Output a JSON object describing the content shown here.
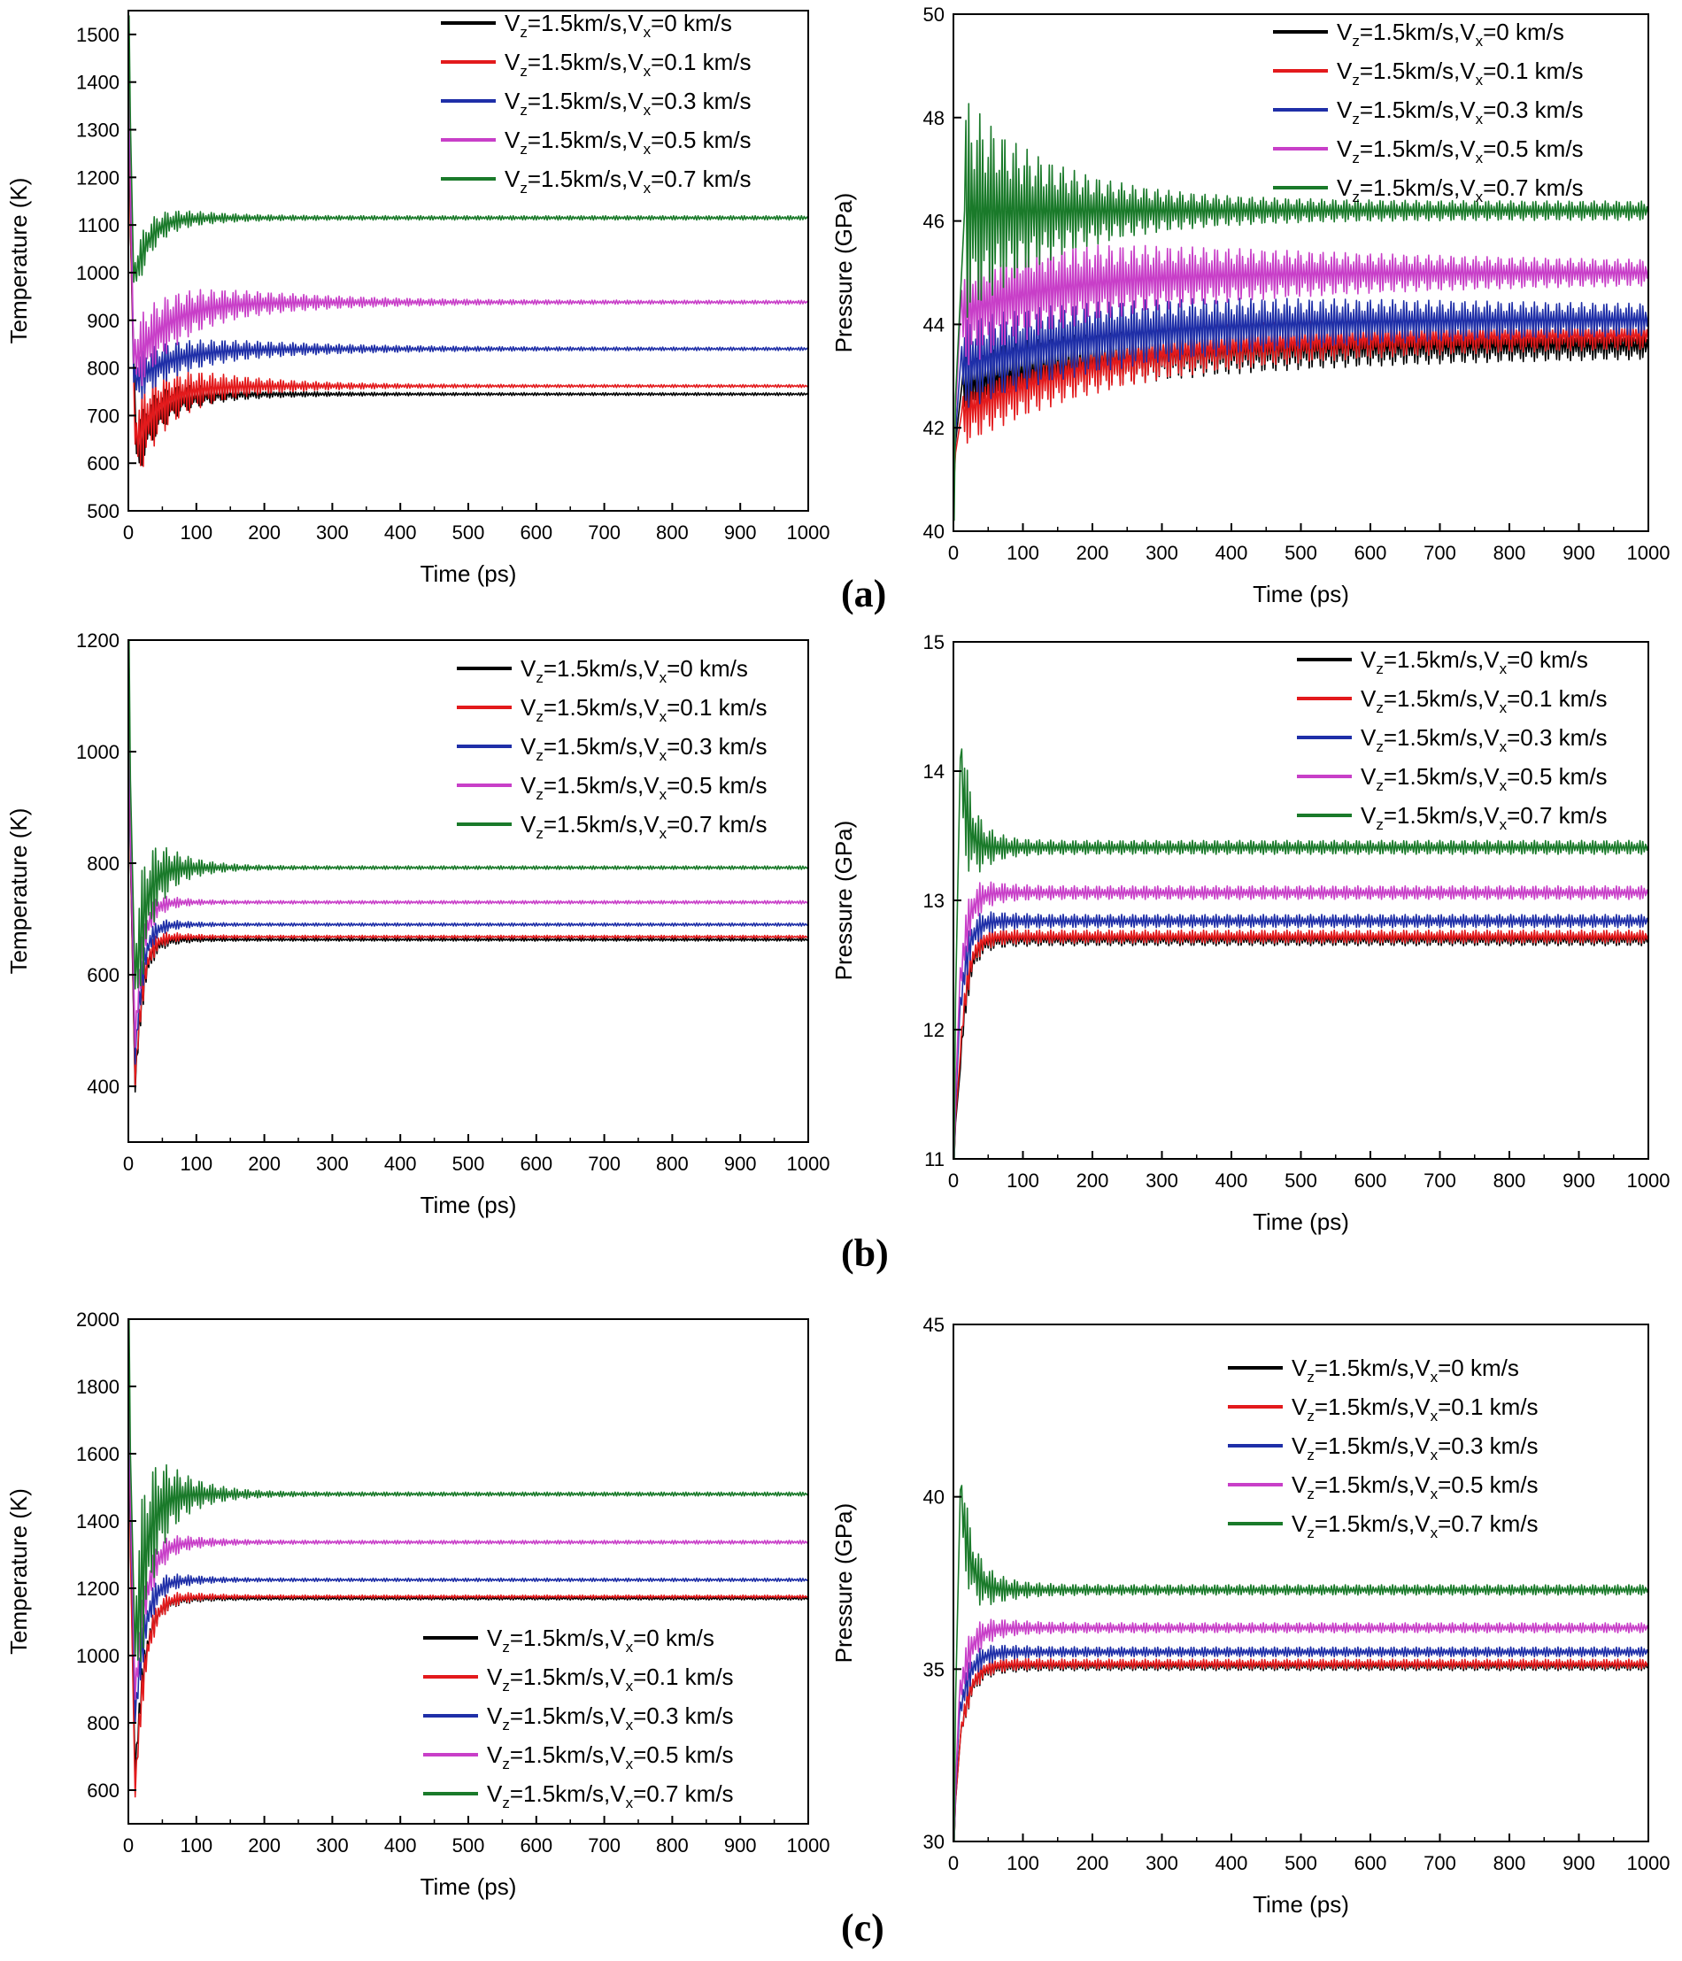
{
  "legend_template": {
    "p1": "V",
    "s1": "z",
    "p2": "=1.5km/s,V",
    "s2": "x"
  },
  "series_colors": {
    "0": "#000000",
    "0.1": "#e31a1c",
    "0.3": "#1f2fa8",
    "0.5": "#c83fc8",
    "0.7": "#1a7a2a"
  },
  "panel_captions": [
    "(a)",
    "(b)",
    "(c)"
  ],
  "chart_data": [
    {
      "type": "line",
      "panel": "(a)",
      "title": "",
      "xlabel": "Time (ps)",
      "ylabel": "Temperature (K)",
      "xlim": [
        0,
        1000
      ],
      "ylim": [
        500,
        1550
      ],
      "xticks": [
        0,
        100,
        200,
        300,
        400,
        500,
        600,
        700,
        800,
        900,
        1000
      ],
      "yticks": [
        500,
        600,
        700,
        800,
        900,
        1000,
        1100,
        1200,
        1300,
        1400,
        1500
      ],
      "legend_position": "top-right",
      "series": [
        {
          "name": "Vz=1.5km/s,Vx=0 km/s",
          "vx": "0",
          "legend_tail": "=0 km/s",
          "start": 1400,
          "min": 620,
          "min_t": 12,
          "steady": 745,
          "amp_initial": 60,
          "decay_ps": 80,
          "period_ps": 8
        },
        {
          "name": "Vz=1.5km/s,Vx=0.1 km/s",
          "vx": "0.1",
          "legend_tail": "=0.1 km/s",
          "start": 1400,
          "min": 640,
          "min_t": 10,
          "steady": 762,
          "amp_initial": 90,
          "decay_ps": 100,
          "period_ps": 8
        },
        {
          "name": "Vz=1.5km/s,Vx=0.3 km/s",
          "vx": "0.3",
          "legend_tail": "=0.3 km/s",
          "start": 1450,
          "min": 770,
          "min_t": 8,
          "steady": 840,
          "amp_initial": 50,
          "decay_ps": 150,
          "period_ps": 8
        },
        {
          "name": "Vz=1.5km/s,Vx=0.5 km/s",
          "vx": "0.5",
          "legend_tail": "=0.5 km/s",
          "start": 1480,
          "min": 810,
          "min_t": 8,
          "steady": 938,
          "amp_initial": 80,
          "decay_ps": 140,
          "period_ps": 8
        },
        {
          "name": "Vz=1.5km/s,Vx=0.7 km/s",
          "vx": "0.7",
          "legend_tail": "=0.7 km/s",
          "start": 1540,
          "min": 980,
          "min_t": 8,
          "steady": 1115,
          "amp_initial": 50,
          "decay_ps": 60,
          "period_ps": 8
        }
      ]
    },
    {
      "type": "line",
      "panel": "(a)",
      "title": "",
      "xlabel": "Time (ps)",
      "ylabel": "Pressure (GPa)",
      "xlim": [
        0,
        1000
      ],
      "ylim": [
        40,
        50
      ],
      "xticks": [
        0,
        100,
        200,
        300,
        400,
        500,
        600,
        700,
        800,
        900,
        1000
      ],
      "yticks": [
        40,
        42,
        44,
        46,
        48,
        50
      ],
      "legend_position": "top-right",
      "series": [
        {
          "name": "Vz=1.5km/s,Vx=0 km/s",
          "vx": "0",
          "legend_tail": "=0 km/s",
          "start": 41.0,
          "min": 42.8,
          "min_t": 12,
          "steady": 43.6,
          "amp_initial": 0.5,
          "decay_ps": 600,
          "period_ps": 8
        },
        {
          "name": "Vz=1.5km/s,Vx=0.1 km/s",
          "vx": "0.1",
          "legend_tail": "=0.1 km/s",
          "start": 41.0,
          "min": 42.3,
          "min_t": 12,
          "steady": 43.8,
          "amp_initial": 0.5,
          "decay_ps": 600,
          "period_ps": 8
        },
        {
          "name": "Vz=1.5km/s,Vx=0.3 km/s",
          "vx": "0.3",
          "legend_tail": "=0.3 km/s",
          "start": 41.0,
          "min": 43.2,
          "min_t": 10,
          "steady": 44.1,
          "amp_initial": 0.7,
          "decay_ps": 600,
          "period_ps": 8
        },
        {
          "name": "Vz=1.5km/s,Vx=0.5 km/s",
          "vx": "0.5",
          "legend_tail": "=0.5 km/s",
          "start": 41.0,
          "min": 44.2,
          "min_t": 10,
          "steady": 45.0,
          "amp_initial": 0.9,
          "decay_ps": 400,
          "period_ps": 8
        },
        {
          "name": "Vz=1.5km/s,Vx=0.7 km/s",
          "vx": "0.7",
          "legend_tail": "=0.7 km/s",
          "start": 40.2,
          "min": 46.2,
          "min_t": 16,
          "steady": 46.2,
          "amp_initial": 2.0,
          "decay_ps": 130,
          "period_ps": 8
        }
      ]
    },
    {
      "type": "line",
      "panel": "(b)",
      "title": "",
      "xlabel": "Time (ps)",
      "ylabel": "Temperature (K)",
      "xlim": [
        0,
        1000
      ],
      "ylim": [
        300,
        1200
      ],
      "xticks": [
        0,
        100,
        200,
        300,
        400,
        500,
        600,
        700,
        800,
        900,
        1000
      ],
      "yticks": [
        400,
        600,
        800,
        1000,
        1200
      ],
      "legend_position": "top-right",
      "series": [
        {
          "name": "Vz=1.5km/s,Vx=0 km/s",
          "vx": "0",
          "legend_tail": "=0 km/s",
          "start": 1100,
          "min": 390,
          "min_t": 10,
          "steady": 663,
          "amp_initial": 40,
          "decay_ps": 30,
          "period_ps": 8
        },
        {
          "name": "Vz=1.5km/s,Vx=0.1 km/s",
          "vx": "0.1",
          "legend_tail": "=0.1 km/s",
          "start": 1100,
          "min": 400,
          "min_t": 10,
          "steady": 668,
          "amp_initial": 40,
          "decay_ps": 30,
          "period_ps": 8
        },
        {
          "name": "Vz=1.5km/s,Vx=0.3 km/s",
          "vx": "0.3",
          "legend_tail": "=0.3 km/s",
          "start": 1120,
          "min": 440,
          "min_t": 10,
          "steady": 690,
          "amp_initial": 40,
          "decay_ps": 30,
          "period_ps": 8
        },
        {
          "name": "Vz=1.5km/s,Vx=0.5 km/s",
          "vx": "0.5",
          "legend_tail": "=0.5 km/s",
          "start": 1150,
          "min": 470,
          "min_t": 10,
          "steady": 730,
          "amp_initial": 50,
          "decay_ps": 30,
          "period_ps": 8
        },
        {
          "name": "Vz=1.5km/s,Vx=0.7 km/s",
          "vx": "0.7",
          "legend_tail": "=0.7 km/s",
          "start": 1200,
          "min": 575,
          "min_t": 10,
          "steady": 792,
          "amp_initial": 130,
          "decay_ps": 40,
          "period_ps": 8
        }
      ]
    },
    {
      "type": "line",
      "panel": "(b)",
      "title": "",
      "xlabel": "Time (ps)",
      "ylabel": "Pressure (GPa)",
      "xlim": [
        0,
        1000
      ],
      "ylim": [
        11,
        15
      ],
      "xticks": [
        0,
        100,
        200,
        300,
        400,
        500,
        600,
        700,
        800,
        900,
        1000
      ],
      "yticks": [
        11,
        12,
        13,
        14,
        15
      ],
      "legend_position": "top-right",
      "series": [
        {
          "name": "Vz=1.5km/s,Vx=0 km/s",
          "vx": "0",
          "legend_tail": "=0 km/s",
          "start": 11.0,
          "min": 11.7,
          "min_t": 10,
          "steady": 12.7,
          "amp_initial": 0.1,
          "decay_ps": 30,
          "period_ps": 8
        },
        {
          "name": "Vz=1.5km/s,Vx=0.1 km/s",
          "vx": "0.1",
          "legend_tail": "=0.1 km/s",
          "start": 11.0,
          "min": 11.8,
          "min_t": 10,
          "steady": 12.72,
          "amp_initial": 0.1,
          "decay_ps": 30,
          "period_ps": 8
        },
        {
          "name": "Vz=1.5km/s,Vx=0.3 km/s",
          "vx": "0.3",
          "legend_tail": "=0.3 km/s",
          "start": 11.0,
          "min": 12.0,
          "min_t": 8,
          "steady": 12.84,
          "amp_initial": 0.15,
          "decay_ps": 30,
          "period_ps": 8
        },
        {
          "name": "Vz=1.5km/s,Vx=0.5 km/s",
          "vx": "0.5",
          "legend_tail": "=0.5 km/s",
          "start": 11.0,
          "min": 12.2,
          "min_t": 8,
          "steady": 13.06,
          "amp_initial": 0.2,
          "decay_ps": 30,
          "period_ps": 8
        },
        {
          "name": "Vz=1.5km/s,Vx=0.7 km/s",
          "vx": "0.7",
          "legend_tail": "=0.7 km/s",
          "start": 11.0,
          "min": 14.1,
          "min_t": 10,
          "steady": 13.41,
          "amp_initial": 0.5,
          "decay_ps": 25,
          "period_ps": 8
        }
      ]
    },
    {
      "type": "line",
      "panel": "(c)",
      "title": "",
      "xlabel": "Time (ps)",
      "ylabel": "Temperature (K)",
      "xlim": [
        0,
        1000
      ],
      "ylim": [
        500,
        2000
      ],
      "xticks": [
        0,
        100,
        200,
        300,
        400,
        500,
        600,
        700,
        800,
        900,
        1000
      ],
      "yticks": [
        600,
        800,
        1000,
        1200,
        1400,
        1600,
        1800,
        2000
      ],
      "legend_position": "bottom-right",
      "series": [
        {
          "name": "Vz=1.5km/s,Vx=0 km/s",
          "vx": "0",
          "legend_tail": "=0 km/s",
          "start": 1800,
          "min": 640,
          "min_t": 10,
          "steady": 1170,
          "amp_initial": 60,
          "decay_ps": 40,
          "period_ps": 8
        },
        {
          "name": "Vz=1.5km/s,Vx=0.1 km/s",
          "vx": "0.1",
          "legend_tail": "=0.1 km/s",
          "start": 1800,
          "min": 580,
          "min_t": 10,
          "steady": 1175,
          "amp_initial": 70,
          "decay_ps": 40,
          "period_ps": 8
        },
        {
          "name": "Vz=1.5km/s,Vx=0.3 km/s",
          "vx": "0.3",
          "legend_tail": "=0.3 km/s",
          "start": 1850,
          "min": 800,
          "min_t": 10,
          "steady": 1225,
          "amp_initial": 80,
          "decay_ps": 40,
          "period_ps": 8
        },
        {
          "name": "Vz=1.5km/s,Vx=0.5 km/s",
          "vx": "0.5",
          "legend_tail": "=0.5 km/s",
          "start": 1900,
          "min": 870,
          "min_t": 10,
          "steady": 1337,
          "amp_initial": 90,
          "decay_ps": 45,
          "period_ps": 8
        },
        {
          "name": "Vz=1.5km/s,Vx=0.7 km/s",
          "vx": "0.7",
          "legend_tail": "=0.7 km/s",
          "start": 2000,
          "min": 1000,
          "min_t": 10,
          "steady": 1480,
          "amp_initial": 300,
          "decay_ps": 45,
          "period_ps": 8
        }
      ]
    },
    {
      "type": "line",
      "panel": "(c)",
      "title": "",
      "xlabel": "Time (ps)",
      "ylabel": "Pressure (GPa)",
      "xlim": [
        0,
        1000
      ],
      "ylim": [
        30,
        45
      ],
      "xticks": [
        0,
        100,
        200,
        300,
        400,
        500,
        600,
        700,
        800,
        900,
        1000
      ],
      "yticks": [
        30,
        35,
        40,
        45
      ],
      "legend_position": "top-right",
      "series": [
        {
          "name": "Vz=1.5km/s,Vx=0 km/s",
          "vx": "0",
          "legend_tail": "=0 km/s",
          "start": 30.0,
          "min": 33.0,
          "min_t": 10,
          "steady": 35.1,
          "amp_initial": 0.3,
          "decay_ps": 40,
          "period_ps": 8
        },
        {
          "name": "Vz=1.5km/s,Vx=0.1 km/s",
          "vx": "0.1",
          "legend_tail": "=0.1 km/s",
          "start": 30.0,
          "min": 33.0,
          "min_t": 10,
          "steady": 35.15,
          "amp_initial": 0.3,
          "decay_ps": 40,
          "period_ps": 8
        },
        {
          "name": "Vz=1.5km/s,Vx=0.3 km/s",
          "vx": "0.3",
          "legend_tail": "=0.3 km/s",
          "start": 30.0,
          "min": 33.5,
          "min_t": 8,
          "steady": 35.5,
          "amp_initial": 0.4,
          "decay_ps": 40,
          "period_ps": 8
        },
        {
          "name": "Vz=1.5km/s,Vx=0.5 km/s",
          "vx": "0.5",
          "legend_tail": "=0.5 km/s",
          "start": 30.0,
          "min": 34.0,
          "min_t": 8,
          "steady": 36.2,
          "amp_initial": 0.6,
          "decay_ps": 40,
          "period_ps": 8
        },
        {
          "name": "Vz=1.5km/s,Vx=0.7 km/s",
          "vx": "0.7",
          "legend_tail": "=0.7 km/s",
          "start": 30.0,
          "min": 40.2,
          "min_t": 10,
          "steady": 37.3,
          "amp_initial": 1.3,
          "decay_ps": 35,
          "period_ps": 8
        }
      ]
    }
  ]
}
